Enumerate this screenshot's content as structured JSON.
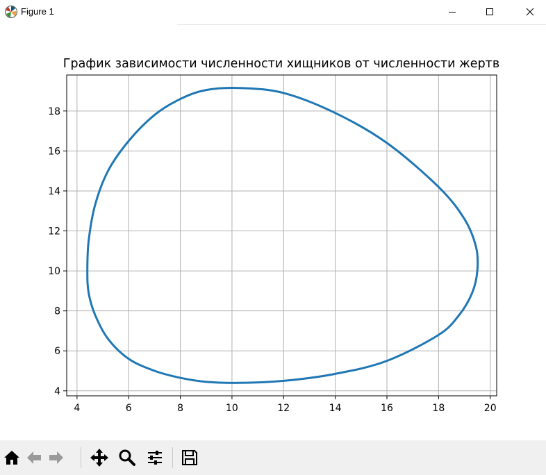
{
  "window": {
    "title": "Figure 1",
    "app_icon": "matplotlib-logo-icon",
    "controls": [
      "minimize-icon",
      "maximize-icon",
      "close-icon"
    ]
  },
  "toolbar": {
    "buttons": [
      {
        "name": "home-icon"
      },
      {
        "name": "back-arrow-icon"
      },
      {
        "name": "forward-arrow-icon"
      },
      {
        "name": "pan-move-icon"
      },
      {
        "name": "zoom-magnifier-icon"
      },
      {
        "name": "configure-subplots-icon"
      },
      {
        "name": "save-floppy-icon"
      }
    ]
  },
  "chart_data": {
    "type": "line",
    "title": "График зависимости численности хищников от численности жертв",
    "xlabel": "",
    "ylabel": "",
    "xlim": [
      3.6,
      20.25
    ],
    "ylim": [
      3.75,
      19.8
    ],
    "xticks": [
      4,
      6,
      8,
      10,
      12,
      14,
      16,
      18,
      20
    ],
    "yticks": [
      4,
      6,
      8,
      10,
      12,
      14,
      16,
      18
    ],
    "grid": true,
    "line_color": "#1f77b4",
    "series": [
      {
        "closed": true,
        "x": [
          10.3,
          12.0,
          14.0,
          16.0,
          18.0,
          19.0,
          19.45,
          19.5,
          19.3,
          18.8,
          18.0,
          16.0,
          14.0,
          12.0,
          10.3,
          9.0,
          8.0,
          7.0,
          6.0,
          5.2,
          4.7,
          4.45,
          4.4,
          4.45,
          4.7,
          5.2,
          6.0,
          7.0,
          8.0,
          9.0
        ],
        "y": [
          19.15,
          18.9,
          17.9,
          16.4,
          14.2,
          12.6,
          11.2,
          10.0,
          8.9,
          7.8,
          6.8,
          5.5,
          4.85,
          4.5,
          4.4,
          4.45,
          4.65,
          5.0,
          5.6,
          6.6,
          7.8,
          8.9,
          10.0,
          11.5,
          13.3,
          15.0,
          16.5,
          17.8,
          18.6,
          19.05
        ]
      }
    ]
  }
}
